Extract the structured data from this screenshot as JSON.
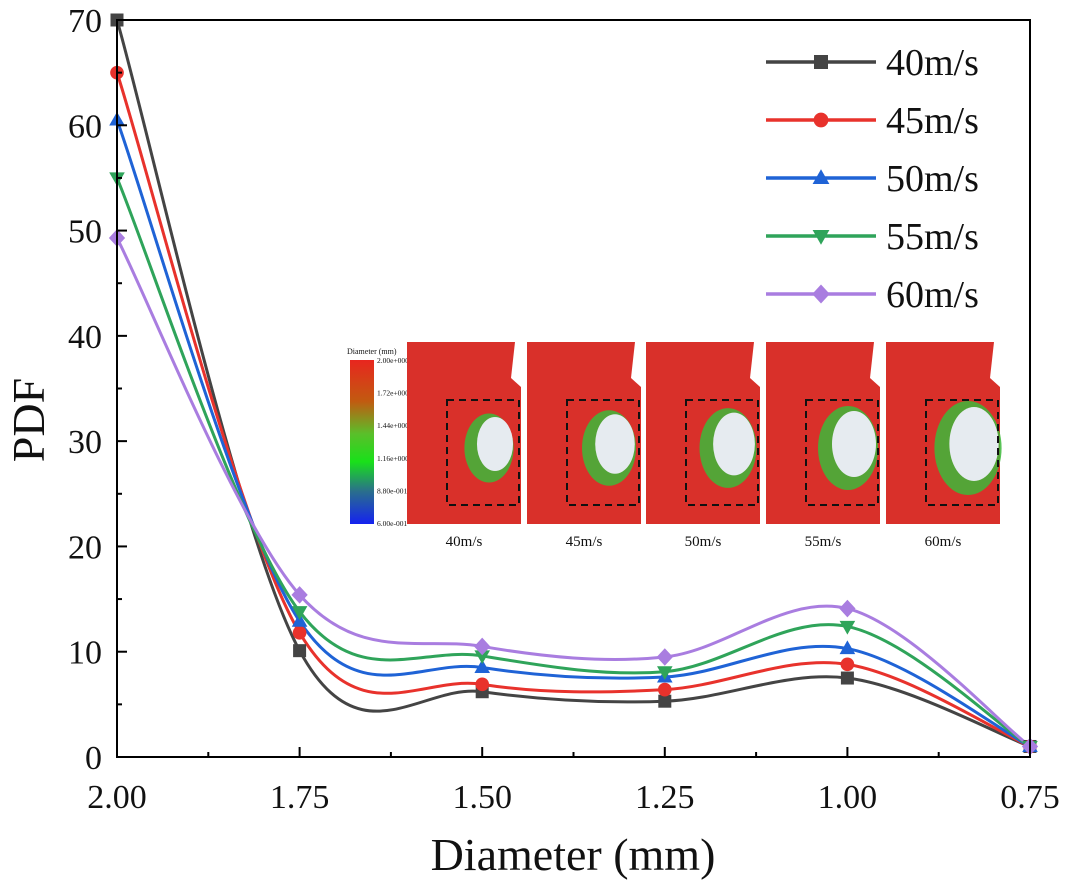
{
  "chart_data": {
    "type": "line",
    "xlabel": "Diameter (mm)",
    "ylabel": "PDF",
    "xlim": [
      2.0,
      0.75
    ],
    "ylim": [
      0,
      70
    ],
    "x_reversed": true,
    "x_ticks": [
      "2.00",
      "1.75",
      "1.50",
      "1.25",
      "1.00",
      "0.75"
    ],
    "y_ticks": [
      "0",
      "10",
      "20",
      "30",
      "40",
      "50",
      "60",
      "70"
    ],
    "x": [
      2.0,
      1.75,
      1.5,
      1.25,
      1.0,
      0.75
    ],
    "legend_position": "top-right",
    "grid": false,
    "series": [
      {
        "name": "40m/s",
        "color": "#444444",
        "marker": "square",
        "values": [
          70.0,
          10.1,
          6.2,
          5.3,
          7.5,
          1.0
        ]
      },
      {
        "name": "45m/s",
        "color": "#e8322c",
        "marker": "circle",
        "values": [
          65.0,
          11.8,
          6.9,
          6.4,
          8.8,
          1.0
        ]
      },
      {
        "name": "50m/s",
        "color": "#1f63d6",
        "marker": "triangle",
        "values": [
          60.5,
          12.9,
          8.5,
          7.6,
          10.3,
          1.0
        ]
      },
      {
        "name": "55m/s",
        "color": "#2fa45a",
        "marker": "triangle-down",
        "values": [
          55.0,
          13.8,
          9.6,
          8.1,
          12.4,
          1.0
        ]
      },
      {
        "name": "60m/s",
        "color": "#a97de0",
        "marker": "diamond",
        "values": [
          49.3,
          15.4,
          10.5,
          9.5,
          14.1,
          1.0
        ]
      }
    ]
  },
  "inset": {
    "colorbar_title": "Diameter (mm)",
    "colorbar_labels": [
      "2.00e+000",
      "1.72e+000",
      "1.44e+000",
      "1.16e+000",
      "8.80e-001",
      "6.00e-001"
    ],
    "panels": [
      "40m/s",
      "45m/s",
      "50m/s",
      "55m/s",
      "60m/s"
    ],
    "blob_scale": [
      0.82,
      0.9,
      0.95,
      1.0,
      1.12
    ]
  }
}
